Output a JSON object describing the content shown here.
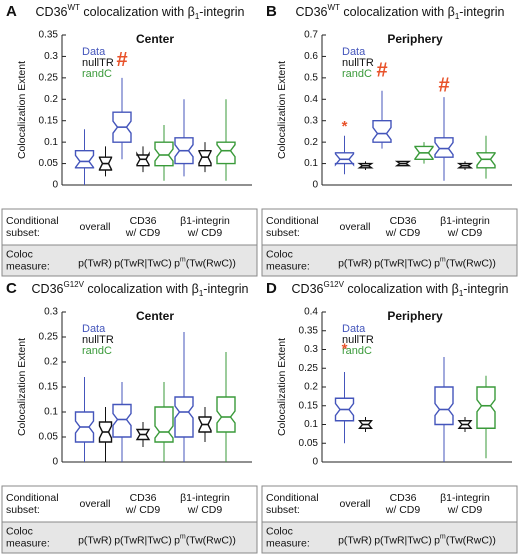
{
  "chart_data": [
    {
      "type": "box",
      "panel_label": "A",
      "title": {
        "main": "CD36",
        "sup": "WT",
        "mid": " colocalization with β",
        "sub": "1",
        "end": "-integrin"
      },
      "subtitle": "Center",
      "y_label": "Colocalization Extent",
      "ylim": [
        0,
        0.35
      ],
      "yticks": [
        0,
        0.05,
        0.1,
        0.15,
        0.2,
        0.25,
        0.3,
        0.35
      ],
      "row_labels": [
        [
          "Conditional",
          "subset:"
        ],
        [
          "Coloc",
          "measure:"
        ]
      ],
      "categories": [
        [
          "overall"
        ],
        [
          "CD36",
          "w/ CD9"
        ],
        [
          "β1-integrin",
          "w/ CD9"
        ]
      ],
      "measures": [
        [
          "p(TwR)"
        ],
        [
          "p(TwR|TwC)"
        ],
        [
          "p",
          "m",
          "(Tw(RwC))"
        ]
      ],
      "series": [
        {
          "name": "Data",
          "color": "#4455bb",
          "values": [
            {
              "lo": 0,
              "q1": 0.04,
              "median": 0.055,
              "q3": 0.08,
              "hi": 0.13
            },
            {
              "lo": 0.06,
              "q1": 0.1,
              "median": 0.135,
              "q3": 0.17,
              "hi": 0.25
            },
            {
              "lo": 0.02,
              "q1": 0.05,
              "median": 0.08,
              "q3": 0.11,
              "hi": 0.2
            }
          ]
        },
        {
          "name": "nullTR",
          "color": "#111111",
          "values": [
            {
              "lo": 0.02,
              "q1": 0.035,
              "median": 0.05,
              "q3": 0.065,
              "hi": 0.09
            },
            {
              "lo": 0.03,
              "q1": 0.045,
              "median": 0.06,
              "q3": 0.07,
              "hi": 0.09
            },
            {
              "lo": 0.03,
              "q1": 0.045,
              "median": 0.065,
              "q3": 0.08,
              "hi": 0.1
            }
          ]
        },
        {
          "name": "randC",
          "color": "#3a9a3a",
          "values": [
            null,
            {
              "lo": 0.01,
              "q1": 0.045,
              "median": 0.07,
              "q3": 0.1,
              "hi": 0.14
            },
            {
              "lo": 0.01,
              "q1": 0.05,
              "median": 0.08,
              "q3": 0.1,
              "hi": 0.2
            }
          ]
        }
      ],
      "annotations": [
        {
          "text": "#",
          "category": 1,
          "series": 0,
          "value": 0.29,
          "color": "#e8522a"
        }
      ]
    },
    {
      "type": "box",
      "panel_label": "B",
      "title": {
        "main": "CD36",
        "sup": "WT",
        "mid": " colocalization with β",
        "sub": "1",
        "end": "-integrin"
      },
      "subtitle": "Periphery",
      "y_label": "Colocalization Extent",
      "ylim": [
        0,
        0.7
      ],
      "yticks": [
        0,
        0.1,
        0.2,
        0.3,
        0.4,
        0.5,
        0.6,
        0.7
      ],
      "row_labels": [
        [
          "Conditional",
          "subset:"
        ],
        [
          "Coloc",
          "measure:"
        ]
      ],
      "categories": [
        [
          "overall"
        ],
        [
          "CD36",
          "w/ CD9"
        ],
        [
          "β1-integrin",
          "w/ CD9"
        ]
      ],
      "measures": [
        [
          "p(TwR)"
        ],
        [
          "p(TwR|TwC)"
        ],
        [
          "p",
          "m",
          "(Tw(RwC))"
        ]
      ],
      "series": [
        {
          "name": "Data",
          "color": "#4455bb",
          "values": [
            {
              "lo": 0.05,
              "q1": 0.1,
              "median": 0.12,
              "q3": 0.15,
              "hi": 0.23
            },
            {
              "lo": 0.17,
              "q1": 0.2,
              "median": 0.24,
              "q3": 0.3,
              "hi": 0.44
            },
            {
              "lo": 0.02,
              "q1": 0.13,
              "median": 0.17,
              "q3": 0.22,
              "hi": 0.41
            }
          ]
        },
        {
          "name": "nullTR",
          "color": "#111111",
          "values": [
            {
              "lo": 0.07,
              "q1": 0.08,
              "median": 0.09,
              "q3": 0.1,
              "hi": 0.11
            },
            {
              "lo": 0.09,
              "q1": 0.09,
              "median": 0.1,
              "q3": 0.11,
              "hi": 0.11
            },
            {
              "lo": 0.07,
              "q1": 0.08,
              "median": 0.09,
              "q3": 0.1,
              "hi": 0.11
            }
          ]
        },
        {
          "name": "randC",
          "color": "#3a9a3a",
          "values": [
            null,
            {
              "lo": 0.1,
              "q1": 0.12,
              "median": 0.15,
              "q3": 0.18,
              "hi": 0.2
            },
            {
              "lo": 0.03,
              "q1": 0.08,
              "median": 0.12,
              "q3": 0.15,
              "hi": 0.23
            }
          ]
        }
      ],
      "annotations": [
        {
          "text": "*",
          "category": 0,
          "series": 0,
          "value": 0.27,
          "color": "#e8522a"
        },
        {
          "text": "#",
          "category": 1,
          "series": 0,
          "value": 0.53,
          "color": "#e8522a"
        },
        {
          "text": "#",
          "category": 2,
          "series": 0,
          "value": 0.46,
          "color": "#e8522a"
        }
      ]
    },
    {
      "type": "box",
      "panel_label": "C",
      "title": {
        "main": "CD36",
        "sup": "G12V",
        "mid": " colocalization with β",
        "sub": "1",
        "end": "-integrin"
      },
      "subtitle": "Center",
      "y_label": "Colocalization Extent",
      "ylim": [
        0,
        0.3
      ],
      "yticks": [
        0,
        0.05,
        0.1,
        0.15,
        0.2,
        0.25,
        0.3
      ],
      "row_labels": [
        [
          "Conditional",
          "subset:"
        ],
        [
          "Coloc",
          "measure:"
        ]
      ],
      "categories": [
        [
          "overall"
        ],
        [
          "CD36",
          "w/ CD9"
        ],
        [
          "β1-integrin",
          "w/ CD9"
        ]
      ],
      "measures": [
        [
          "p(TwR)"
        ],
        [
          "p(TwR|TwC)"
        ],
        [
          "p",
          "m",
          "(Tw(RwC))"
        ]
      ],
      "series": [
        {
          "name": "Data",
          "color": "#4455bb",
          "values": [
            {
              "lo": 0,
              "q1": 0.04,
              "median": 0.07,
              "q3": 0.1,
              "hi": 0.17
            },
            {
              "lo": 0,
              "q1": 0.05,
              "median": 0.085,
              "q3": 0.115,
              "hi": 0.16
            },
            {
              "lo": 0,
              "q1": 0.05,
              "median": 0.1,
              "q3": 0.13,
              "hi": 0.26
            }
          ]
        },
        {
          "name": "nullTR",
          "color": "#111111",
          "values": [
            {
              "lo": 0,
              "q1": 0.04,
              "median": 0.06,
              "q3": 0.08,
              "hi": 0.11
            },
            {
              "lo": 0.03,
              "q1": 0.045,
              "median": 0.055,
              "q3": 0.065,
              "hi": 0.08
            },
            {
              "lo": 0.04,
              "q1": 0.06,
              "median": 0.075,
              "q3": 0.09,
              "hi": 0.11
            }
          ]
        },
        {
          "name": "randC",
          "color": "#3a9a3a",
          "values": [
            null,
            {
              "lo": 0,
              "q1": 0.04,
              "median": 0.06,
              "q3": 0.11,
              "hi": 0.16
            },
            {
              "lo": 0,
              "q1": 0.06,
              "median": 0.09,
              "q3": 0.13,
              "hi": 0.22
            }
          ]
        }
      ],
      "annotations": []
    },
    {
      "type": "box",
      "panel_label": "D",
      "title": {
        "main": "CD36",
        "sup": "G12V",
        "mid": " colocalization with β",
        "sub": "1",
        "end": "-integrin"
      },
      "subtitle": "Periphery",
      "y_label": "Colocalization Extent",
      "ylim": [
        0,
        0.4
      ],
      "yticks": [
        0,
        0.05,
        0.1,
        0.15,
        0.2,
        0.25,
        0.3,
        0.35,
        0.4
      ],
      "row_labels": [
        [
          "Conditional",
          "subset:"
        ],
        [
          "Coloc",
          "measure:"
        ]
      ],
      "categories": [
        [
          "overall"
        ],
        [
          "CD36",
          "w/ CD9"
        ],
        [
          "β1-integrin",
          "w/ CD9"
        ]
      ],
      "measures": [
        [
          "p(TwR)"
        ],
        [
          "p(TwR|TwC)"
        ],
        [
          "p",
          "m",
          "(Tw(RwC))"
        ]
      ],
      "series": [
        {
          "name": "Data",
          "color": "#4455bb",
          "values": [
            {
              "lo": 0.05,
              "q1": 0.11,
              "median": 0.14,
              "q3": 0.17,
              "hi": 0.24
            },
            null,
            {
              "lo": 0,
              "q1": 0.1,
              "median": 0.14,
              "q3": 0.2,
              "hi": 0.28
            }
          ]
        },
        {
          "name": "nullTR",
          "color": "#111111",
          "values": [
            {
              "lo": 0.08,
              "q1": 0.09,
              "median": 0.1,
              "q3": 0.11,
              "hi": 0.12
            },
            null,
            {
              "lo": 0.08,
              "q1": 0.09,
              "median": 0.1,
              "q3": 0.11,
              "hi": 0.12
            }
          ]
        },
        {
          "name": "randC",
          "color": "#3a9a3a",
          "values": [
            null,
            null,
            {
              "lo": 0.01,
              "q1": 0.09,
              "median": 0.15,
              "q3": 0.2,
              "hi": 0.23
            }
          ]
        }
      ],
      "annotations": [
        {
          "text": "*",
          "category": 0,
          "series": 0,
          "value": 0.3,
          "color": "#e8522a"
        }
      ]
    }
  ]
}
